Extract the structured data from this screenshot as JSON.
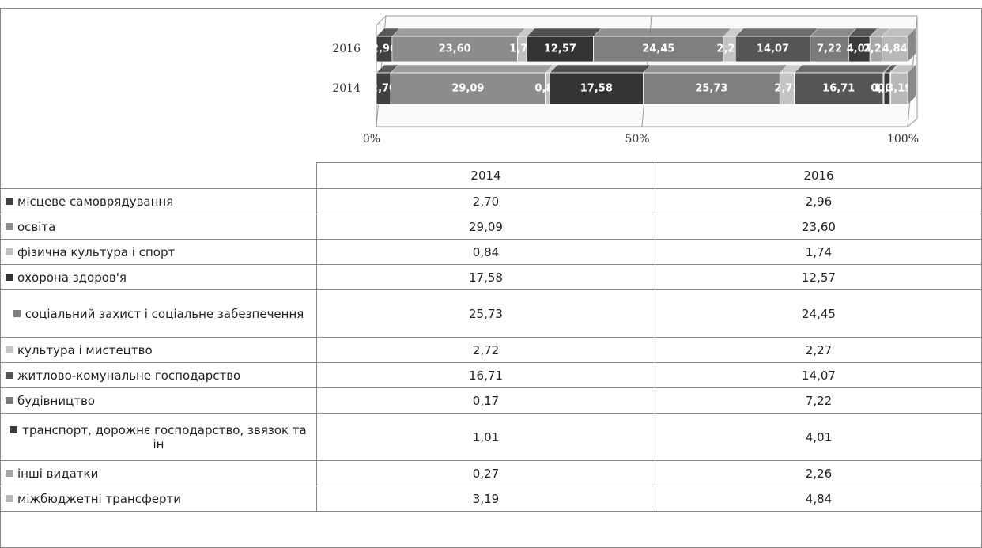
{
  "chart_data": {
    "type": "stacked_bar_100",
    "orientation": "horizontal",
    "categories": [
      "2014",
      "2016"
    ],
    "series": [
      {
        "name": "місцеве самоврядування",
        "color": "#404040",
        "values": [
          2.7,
          2.96
        ],
        "value_labels": [
          "2,70",
          "2,96"
        ]
      },
      {
        "name": "освіта",
        "color": "#8c8c8c",
        "values": [
          29.09,
          23.6
        ],
        "value_labels": [
          "29,09",
          "23,60"
        ]
      },
      {
        "name": "фізична культура і спорт",
        "color": "#bfbfbf",
        "values": [
          0.84,
          1.74
        ],
        "value_labels": [
          "0,84",
          "1,74"
        ]
      },
      {
        "name": "охорона здоров'я",
        "color": "#333333",
        "values": [
          17.58,
          12.57
        ],
        "value_labels": [
          "17,58",
          "12,57"
        ]
      },
      {
        "name": "соціальний захист і соціальне забезпечення",
        "color": "#7f7f7f",
        "values": [
          25.73,
          24.45
        ],
        "value_labels": [
          "25,73",
          "24,45"
        ]
      },
      {
        "name": "культура і мистецтво",
        "color": "#c4c4c4",
        "values": [
          2.72,
          2.27
        ],
        "value_labels": [
          "2,72",
          "2,27"
        ]
      },
      {
        "name": "житлово-комунальне господарство",
        "color": "#555555",
        "values": [
          16.71,
          14.07
        ],
        "value_labels": [
          "16,71",
          "14,07"
        ]
      },
      {
        "name": "будівництво",
        "color": "#7a7a7a",
        "values": [
          0.17,
          7.22
        ],
        "value_labels": [
          "0,17",
          "7,22"
        ]
      },
      {
        "name": "транспорт, дорожнє господарство, звязок та ін",
        "color": "#3a3a3a",
        "values": [
          1.01,
          4.01
        ],
        "value_labels": [
          "1,01",
          "4,01"
        ]
      },
      {
        "name": "інші видатки",
        "color": "#a6a6a6",
        "values": [
          0.27,
          2.26
        ],
        "value_labels": [
          "0,27",
          "2,26"
        ]
      },
      {
        "name": "міжбюджетні трансферти",
        "color": "#b8b8b8",
        "values": [
          3.19,
          4.84
        ],
        "value_labels": [
          "3,19",
          "4,84"
        ]
      }
    ],
    "xlim": [
      0,
      100
    ],
    "xticks": [
      {
        "value": 0,
        "label": "0%"
      },
      {
        "value": 50,
        "label": "50%"
      },
      {
        "value": 100,
        "label": "100%"
      }
    ],
    "grid": true
  }
}
